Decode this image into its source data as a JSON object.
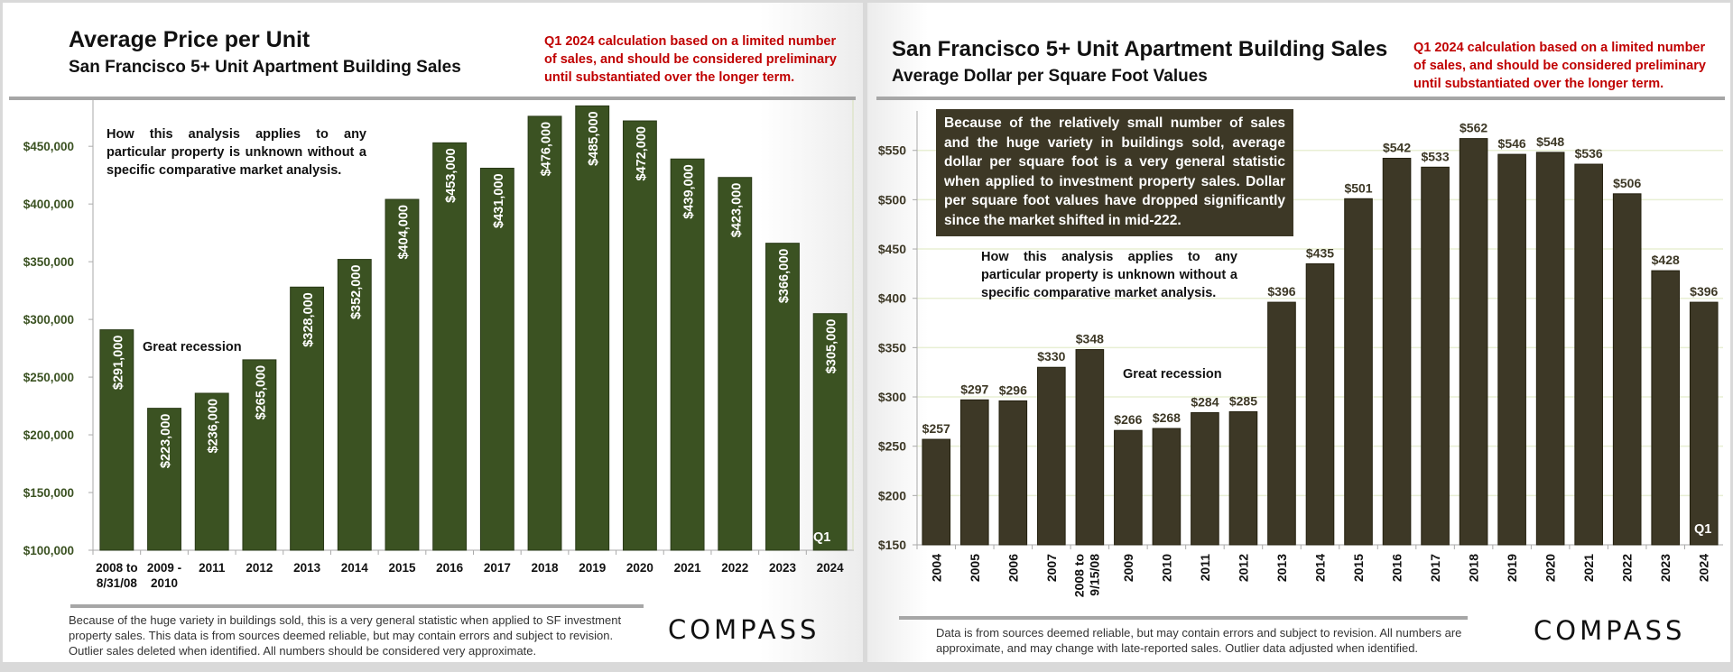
{
  "colors": {
    "bar1": "#3b5222",
    "bar2": "#3d3826",
    "grid": "#e8efd4",
    "red": "#c00000"
  },
  "left": {
    "title": "Average Price per Unit",
    "subtitle": "San Francisco 5+ Unit Apartment Building Sales",
    "red_note": "Q1 2024 calculation based on a limited number of sales, and should be considered preliminary until substantiated over the longer term.",
    "analysis_note": "How this analysis applies to any particular property is unknown without a specific comparative market analysis.",
    "annotation": "Great recession",
    "q1_label": "Q1",
    "footer": "Because of the huge variety in buildings sold, this is a very general statistic when applied to SF investment property sales. This data is from sources deemed reliable, but may contain errors and subject to revision. Outlier sales deleted when identified. All numbers should be considered very approximate.",
    "logo": "COMPASS"
  },
  "right": {
    "title": "San Francisco 5+ Unit Apartment Building Sales",
    "subtitle": "Average Dollar per Square Foot Values",
    "red_note": "Q1 2024 calculation based on a limited number of sales, and should be considered preliminary until substantiated over the longer term.",
    "box_note": "Because of the relatively small number of sales and the huge variety in buildings sold, average dollar per square foot is a very general statistic when applied to investment property sales. Dollar per square foot values have dropped significantly since the market shifted in mid-222.",
    "analysis_note": "How this analysis applies to any particular property is unknown without a specific comparative market analysis.",
    "annotation": "Great recession",
    "q1_label": "Q1",
    "footer": "Data is from sources deemed reliable, but may contain errors and subject to revision. All numbers are approximate, and may change with late-reported sales.  Outlier data adjusted when identified.",
    "logo": "COMPASS"
  },
  "chart_data": [
    {
      "type": "bar",
      "title": "Average Price per Unit",
      "subtitle": "San Francisco 5+ Unit Apartment Building Sales",
      "categories": [
        [
          "2008 to",
          "8/31/08"
        ],
        [
          "2009 -",
          "2010"
        ],
        [
          "2011"
        ],
        [
          "2012"
        ],
        [
          "2013"
        ],
        [
          "2014"
        ],
        [
          "2015"
        ],
        [
          "2016"
        ],
        [
          "2017"
        ],
        [
          "2018"
        ],
        [
          "2019"
        ],
        [
          "2020"
        ],
        [
          "2021"
        ],
        [
          "2022"
        ],
        [
          "2023"
        ],
        [
          "2024"
        ]
      ],
      "values": [
        291000,
        223000,
        236000,
        265000,
        328000,
        352000,
        404000,
        453000,
        431000,
        476000,
        485000,
        472000,
        439000,
        423000,
        366000,
        305000
      ],
      "labels": [
        "$291,000",
        "$223,000",
        "$236,000",
        "$265,000",
        "$328,000",
        "$352,000",
        "$404,000",
        "$453,000",
        "$431,000",
        "$476,000",
        "$485,000",
        "$472,000",
        "$439,000",
        "$423,000",
        "$366,000",
        "$305,000"
      ],
      "yticks": [
        100000,
        150000,
        200000,
        250000,
        300000,
        350000,
        400000,
        450000
      ],
      "ytick_labels": [
        "$100,000",
        "$150,000",
        "$200,000",
        "$250,000",
        "$300,000",
        "$350,000",
        "$400,000",
        "$450,000"
      ],
      "ylim": [
        100000,
        490000
      ],
      "xlabel": "",
      "ylabel": "",
      "grid": false
    },
    {
      "type": "bar",
      "title": "San Francisco 5+ Unit Apartment Building Sales",
      "subtitle": "Average Dollar per Square Foot Values",
      "categories": [
        "2004",
        "2005",
        "2006",
        "2007",
        "2008 to 9/15/08",
        "2009",
        "2010",
        "2011",
        "2012",
        "2013",
        "2014",
        "2015",
        "2016",
        "2017",
        "2018",
        "2019",
        "2020",
        "2021",
        "2022",
        "2023",
        "2024"
      ],
      "values": [
        257,
        297,
        296,
        330,
        348,
        266,
        268,
        284,
        285,
        396,
        435,
        501,
        542,
        533,
        562,
        546,
        548,
        536,
        506,
        428,
        396
      ],
      "labels": [
        "$257",
        "$297",
        "$296",
        "$330",
        "$348",
        "$266",
        "$268",
        "$284",
        "$285",
        "$396",
        "$435",
        "$501",
        "$542",
        "$533",
        "$562",
        "$546",
        "$548",
        "$536",
        "$506",
        "$428",
        "$396"
      ],
      "yticks": [
        150,
        200,
        250,
        300,
        350,
        400,
        450,
        500,
        550
      ],
      "ytick_labels": [
        "$150",
        "$200",
        "$250",
        "$300",
        "$350",
        "$400",
        "$450",
        "$500",
        "$550"
      ],
      "ylim": [
        150,
        590
      ],
      "xlabel": "",
      "ylabel": "",
      "grid": true
    }
  ]
}
